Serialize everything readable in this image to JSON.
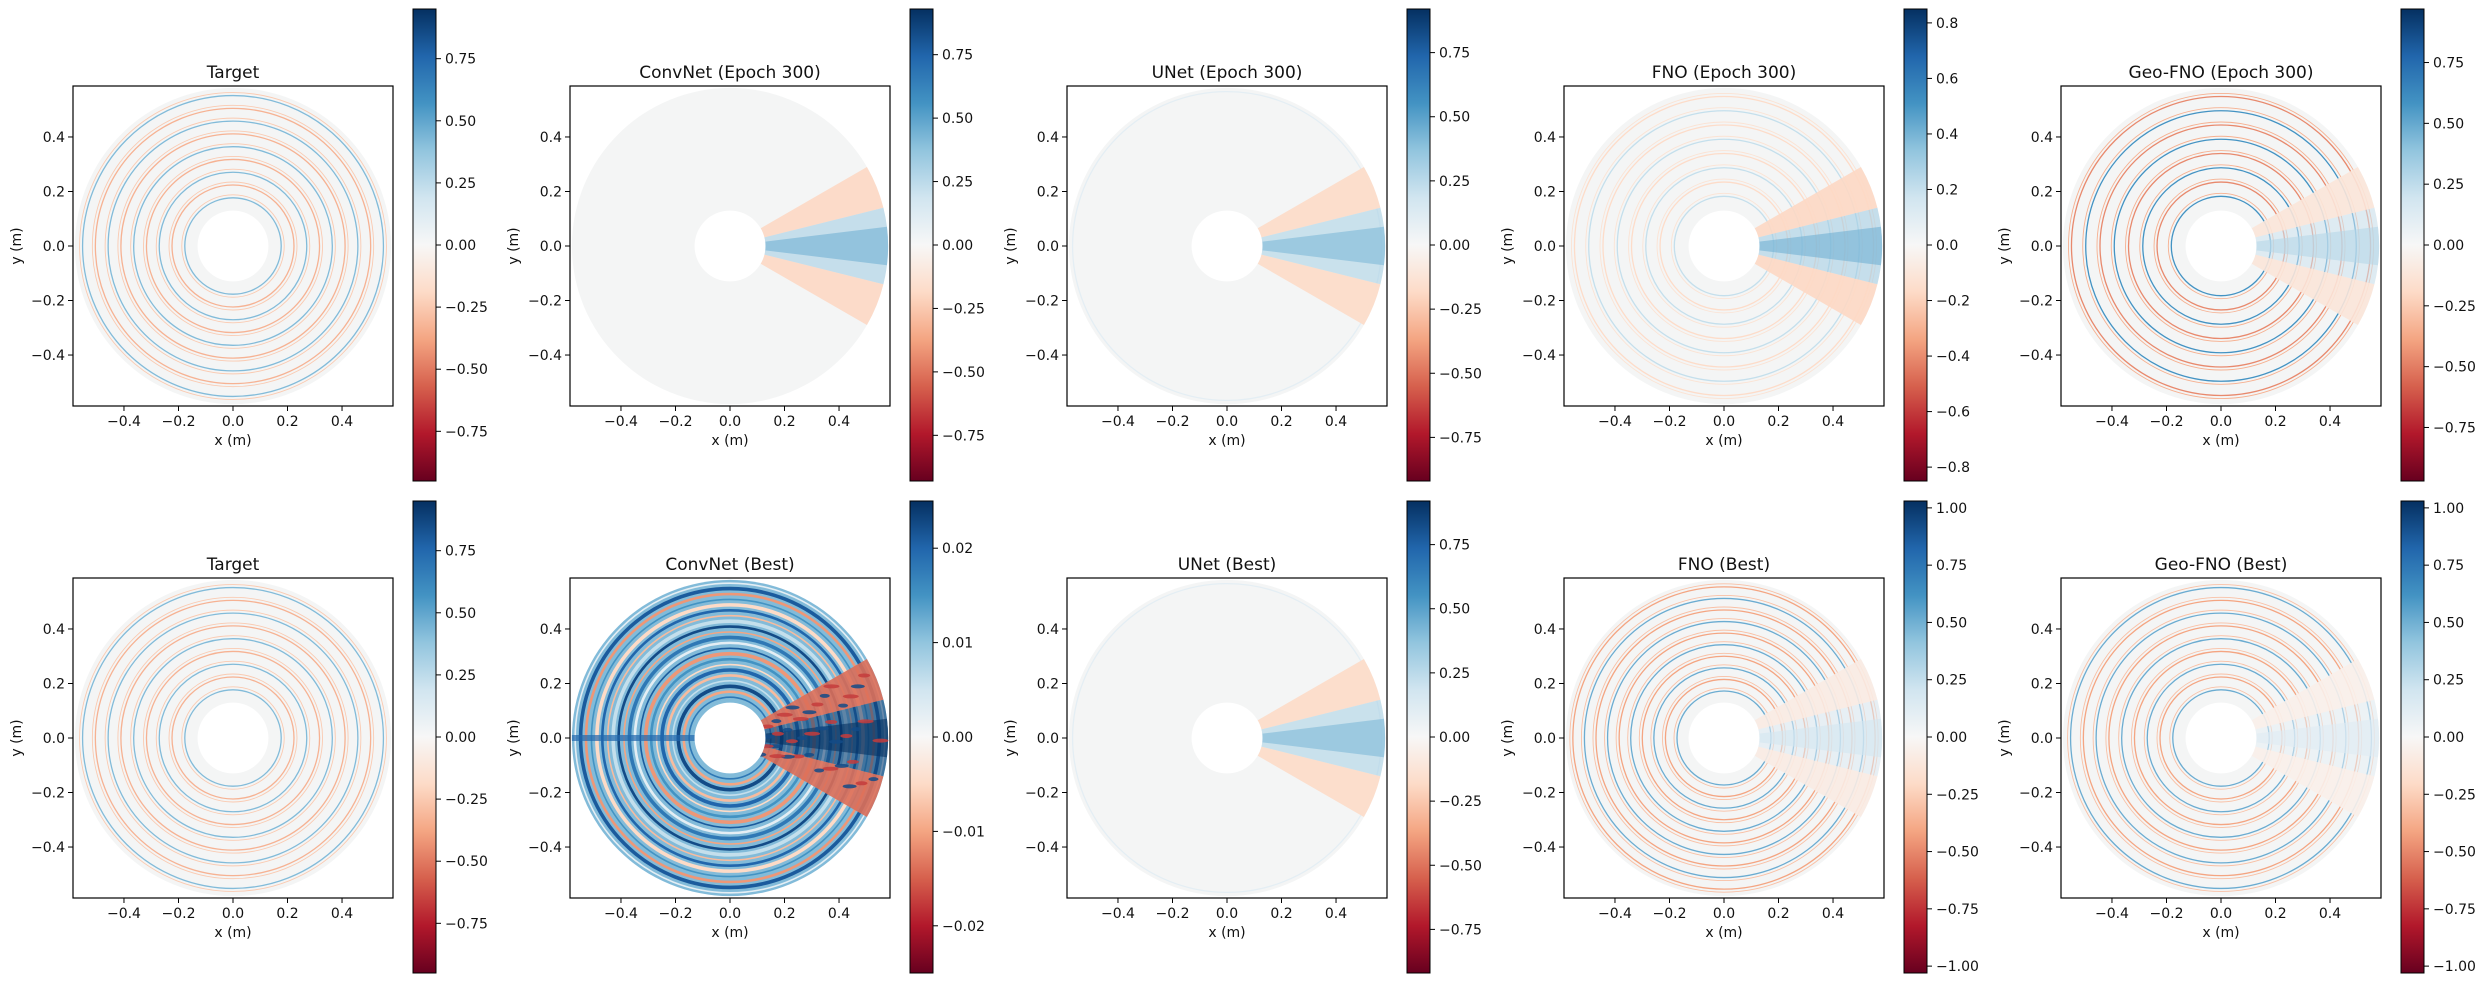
{
  "chart_data": {
    "type": "heatmap",
    "layout": "2 rows x 5 columns of polar-domain field maps, each with its own colorbar",
    "colormap": "RdBu",
    "colormap_stops": [
      "#67001f",
      "#b2182b",
      "#d6604d",
      "#f4a582",
      "#fddbc7",
      "#f7f7f7",
      "#d1e5f0",
      "#92c5de",
      "#4393c3",
      "#2166ac",
      "#053061"
    ],
    "background_field_color": "#f4f5f5",
    "domain": {
      "shape": "annulus",
      "inner_radius_m": 0.13,
      "outer_radius_m": 0.58
    },
    "panels": [
      {
        "title": "Target",
        "xlabel": "x (m)",
        "ylabel": "y (m)",
        "xlim": [
          -0.587,
          0.587
        ],
        "ylim": [
          -0.587,
          0.587
        ],
        "xticks": [
          "−0.4",
          "−0.2",
          "0.0",
          "0.2",
          "0.4"
        ],
        "yticks": [
          "0.4",
          "0.2",
          "0.0",
          "−0.2",
          "−0.4"
        ],
        "tick_values": [
          -0.4,
          -0.2,
          0.0,
          0.2,
          0.4
        ],
        "clim": [
          -0.95,
          0.95
        ],
        "cbar_ticks": [
          -0.75,
          -0.5,
          -0.25,
          0.0,
          0.25,
          0.5,
          0.75
        ],
        "cbar_labels": [
          "−0.75",
          "−0.50",
          "−0.25",
          "0.00",
          "0.25",
          "0.50",
          "0.75"
        ],
        "pattern": "rings",
        "ring_count": 9,
        "ring_strength": 0.22,
        "beam_strength": 0.0
      },
      {
        "title": "ConvNet (Epoch 300)",
        "xlabel": "x (m)",
        "ylabel": "y (m)",
        "xlim": [
          -0.587,
          0.587
        ],
        "ylim": [
          -0.587,
          0.587
        ],
        "xticks": [
          "−0.4",
          "−0.2",
          "0.0",
          "0.2",
          "0.4"
        ],
        "yticks": [
          "0.4",
          "0.2",
          "0.0",
          "−0.2",
          "−0.4"
        ],
        "tick_values": [
          -0.4,
          -0.2,
          0.0,
          0.2,
          0.4
        ],
        "clim": [
          -0.93,
          0.93
        ],
        "cbar_ticks": [
          -0.75,
          -0.5,
          -0.25,
          0.0,
          0.25,
          0.5,
          0.75
        ],
        "cbar_labels": [
          "−0.75",
          "−0.50",
          "−0.25",
          "0.00",
          "0.25",
          "0.50",
          "0.75"
        ],
        "pattern": "beam",
        "ring_count": 0,
        "ring_strength": 0.0,
        "beam_strength": 0.3
      },
      {
        "title": "UNet (Epoch 300)",
        "xlabel": "x (m)",
        "ylabel": "y (m)",
        "xlim": [
          -0.587,
          0.587
        ],
        "ylim": [
          -0.587,
          0.587
        ],
        "xticks": [
          "−0.4",
          "−0.2",
          "0.0",
          "0.2",
          "0.4"
        ],
        "yticks": [
          "0.4",
          "0.2",
          "0.0",
          "−0.2",
          "−0.4"
        ],
        "tick_values": [
          -0.4,
          -0.2,
          0.0,
          0.2,
          0.4
        ],
        "clim": [
          -0.92,
          0.92
        ],
        "cbar_ticks": [
          -0.75,
          -0.5,
          -0.25,
          0.0,
          0.25,
          0.5,
          0.75
        ],
        "cbar_labels": [
          "−0.75",
          "−0.50",
          "−0.25",
          "0.00",
          "0.25",
          "0.50",
          "0.75"
        ],
        "pattern": "beam",
        "ring_count": 1,
        "ring_strength": 0.05,
        "beam_strength": 0.28
      },
      {
        "title": "FNO (Epoch 300)",
        "xlabel": "x (m)",
        "ylabel": "y (m)",
        "xlim": [
          -0.587,
          0.587
        ],
        "ylim": [
          -0.587,
          0.587
        ],
        "xticks": [
          "−0.4",
          "−0.2",
          "0.0",
          "0.2",
          "0.4"
        ],
        "yticks": [
          "0.4",
          "0.2",
          "0.0",
          "−0.2",
          "−0.4"
        ],
        "tick_values": [
          -0.4,
          -0.2,
          0.0,
          0.2,
          0.4
        ],
        "clim": [
          -0.85,
          0.85
        ],
        "cbar_ticks": [
          -0.8,
          -0.6,
          -0.4,
          -0.2,
          0.0,
          0.2,
          0.4,
          0.6,
          0.8
        ],
        "cbar_labels": [
          "−0.8",
          "−0.6",
          "−0.4",
          "−0.2",
          "0.0",
          "0.2",
          "0.4",
          "0.6",
          "0.8"
        ],
        "pattern": "rings+beam",
        "ring_count": 8,
        "ring_strength": 0.12,
        "beam_strength": 0.3
      },
      {
        "title": "Geo-FNO (Epoch 300)",
        "xlabel": "x (m)",
        "ylabel": "y (m)",
        "xlim": [
          -0.587,
          0.587
        ],
        "ylim": [
          -0.587,
          0.587
        ],
        "xticks": [
          "−0.4",
          "−0.2",
          "0.0",
          "0.2",
          "0.4"
        ],
        "yticks": [
          "0.4",
          "0.2",
          "0.0",
          "−0.2",
          "−0.4"
        ],
        "tick_values": [
          -0.4,
          -0.2,
          0.0,
          0.2,
          0.4
        ],
        "clim": [
          -0.97,
          0.97
        ],
        "cbar_ticks": [
          -0.75,
          -0.5,
          -0.25,
          0.0,
          0.25,
          0.5,
          0.75
        ],
        "cbar_labels": [
          "−0.75",
          "−0.50",
          "−0.25",
          "0.00",
          "0.25",
          "0.50",
          "0.75"
        ],
        "pattern": "rings+beam",
        "ring_count": 8,
        "ring_strength": 0.3,
        "beam_strength": 0.18
      },
      {
        "title": "Target",
        "xlabel": "x (m)",
        "ylabel": "y (m)",
        "xlim": [
          -0.587,
          0.587
        ],
        "ylim": [
          -0.587,
          0.587
        ],
        "xticks": [
          "−0.4",
          "−0.2",
          "0.0",
          "0.2",
          "0.4"
        ],
        "yticks": [
          "0.4",
          "0.2",
          "0.0",
          "−0.2",
          "−0.4"
        ],
        "tick_values": [
          -0.4,
          -0.2,
          0.0,
          0.2,
          0.4
        ],
        "clim": [
          -0.95,
          0.95
        ],
        "cbar_ticks": [
          -0.75,
          -0.5,
          -0.25,
          0.0,
          0.25,
          0.5,
          0.75
        ],
        "cbar_labels": [
          "−0.75",
          "−0.50",
          "−0.25",
          "0.00",
          "0.25",
          "0.50",
          "0.75"
        ],
        "pattern": "rings",
        "ring_count": 9,
        "ring_strength": 0.22,
        "beam_strength": 0.0
      },
      {
        "title": "ConvNet (Best)",
        "xlabel": "x (m)",
        "ylabel": "y (m)",
        "xlim": [
          -0.587,
          0.587
        ],
        "ylim": [
          -0.587,
          0.587
        ],
        "xticks": [
          "−0.4",
          "−0.2",
          "0.0",
          "0.2",
          "0.4"
        ],
        "yticks": [
          "0.4",
          "0.2",
          "0.0",
          "−0.2",
          "−0.4"
        ],
        "tick_values": [
          -0.4,
          -0.2,
          0.0,
          0.2,
          0.4
        ],
        "clim": [
          -0.025,
          0.025
        ],
        "cbar_ticks": [
          -0.02,
          -0.01,
          0.0,
          0.01,
          0.02
        ],
        "cbar_labels": [
          "−0.02",
          "−0.01",
          "0.00",
          "0.01",
          "0.02"
        ],
        "pattern": "dense-rings",
        "ring_count": 22,
        "ring_strength": 0.9,
        "beam_strength": 0.8
      },
      {
        "title": "UNet (Best)",
        "xlabel": "x (m)",
        "ylabel": "y (m)",
        "xlim": [
          -0.587,
          0.587
        ],
        "ylim": [
          -0.587,
          0.587
        ],
        "xticks": [
          "−0.4",
          "−0.2",
          "0.0",
          "0.2",
          "0.4"
        ],
        "yticks": [
          "0.4",
          "0.2",
          "0.0",
          "−0.2",
          "−0.4"
        ],
        "tick_values": [
          -0.4,
          -0.2,
          0.0,
          0.2,
          0.4
        ],
        "clim": [
          -0.92,
          0.92
        ],
        "cbar_ticks": [
          -0.75,
          -0.5,
          -0.25,
          0.0,
          0.25,
          0.5,
          0.75
        ],
        "cbar_labels": [
          "−0.75",
          "−0.50",
          "−0.25",
          "0.00",
          "0.25",
          "0.50",
          "0.75"
        ],
        "pattern": "beam",
        "ring_count": 1,
        "ring_strength": 0.05,
        "beam_strength": 0.28
      },
      {
        "title": "FNO (Best)",
        "xlabel": "x (m)",
        "ylabel": "y (m)",
        "xlim": [
          -0.587,
          0.587
        ],
        "ylim": [
          -0.587,
          0.587
        ],
        "xticks": [
          "−0.4",
          "−0.2",
          "0.0",
          "0.2",
          "0.4"
        ],
        "yticks": [
          "0.4",
          "0.2",
          "0.0",
          "−0.2",
          "−0.4"
        ],
        "tick_values": [
          -0.4,
          -0.2,
          0.0,
          0.2,
          0.4
        ],
        "clim": [
          -1.03,
          1.03
        ],
        "cbar_ticks": [
          -1.0,
          -0.75,
          -0.5,
          -0.25,
          0.0,
          0.25,
          0.5,
          0.75,
          1.0
        ],
        "cbar_labels": [
          "−1.00",
          "−0.75",
          "−0.50",
          "−0.25",
          "0.00",
          "0.25",
          "0.50",
          "0.75",
          "1.00"
        ],
        "pattern": "rings+beam",
        "ring_count": 10,
        "ring_strength": 0.25,
        "beam_strength": 0.12
      },
      {
        "title": "Geo-FNO (Best)",
        "xlabel": "x (m)",
        "ylabel": "y (m)",
        "xlim": [
          -0.587,
          0.587
        ],
        "ylim": [
          -0.587,
          0.587
        ],
        "xticks": [
          "−0.4",
          "−0.2",
          "0.0",
          "0.2",
          "0.4"
        ],
        "yticks": [
          "0.4",
          "0.2",
          "0.0",
          "−0.2",
          "−0.4"
        ],
        "tick_values": [
          -0.4,
          -0.2,
          0.0,
          0.2,
          0.4
        ],
        "clim": [
          -1.03,
          1.03
        ],
        "cbar_ticks": [
          -1.0,
          -0.75,
          -0.5,
          -0.25,
          0.0,
          0.25,
          0.5,
          0.75,
          1.0
        ],
        "cbar_labels": [
          "−1.00",
          "−0.75",
          "−0.50",
          "−0.25",
          "0.00",
          "0.25",
          "0.50",
          "0.75",
          "1.00"
        ],
        "pattern": "rings+beam",
        "ring_count": 9,
        "ring_strength": 0.25,
        "beam_strength": 0.08
      }
    ]
  }
}
